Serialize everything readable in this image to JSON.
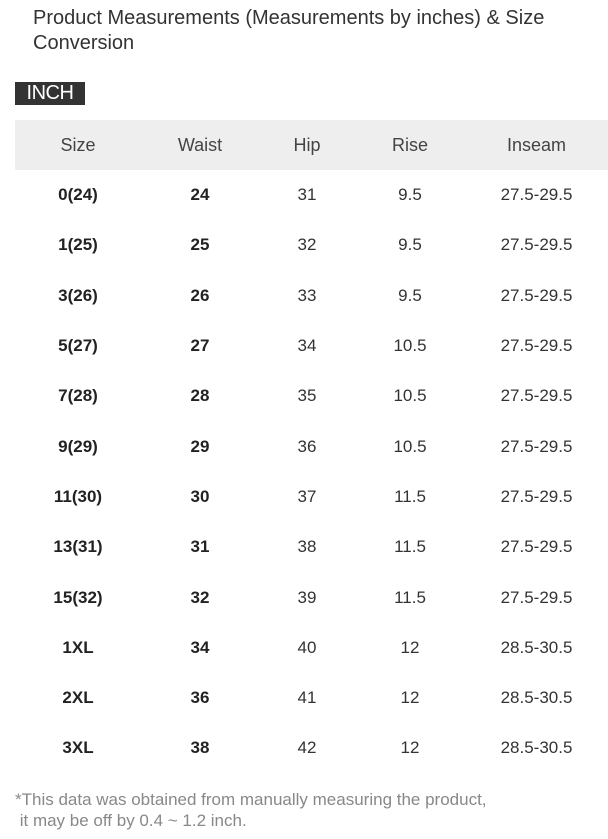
{
  "title": "Product Measurements (Measurements by inches) & Size Conversion",
  "unit_badge": "INCH",
  "table": {
    "headers": [
      "Size",
      "Waist",
      "Hip",
      "Rise",
      "Inseam"
    ],
    "rows": [
      [
        "0(24)",
        "24",
        "31",
        "9.5",
        "27.5-29.5"
      ],
      [
        "1(25)",
        "25",
        "32",
        "9.5",
        "27.5-29.5"
      ],
      [
        "3(26)",
        "26",
        "33",
        "9.5",
        "27.5-29.5"
      ],
      [
        "5(27)",
        "27",
        "34",
        "10.5",
        "27.5-29.5"
      ],
      [
        "7(28)",
        "28",
        "35",
        "10.5",
        "27.5-29.5"
      ],
      [
        "9(29)",
        "29",
        "36",
        "10.5",
        "27.5-29.5"
      ],
      [
        "11(30)",
        "30",
        "37",
        "11.5",
        "27.5-29.5"
      ],
      [
        "13(31)",
        "31",
        "38",
        "11.5",
        "27.5-29.5"
      ],
      [
        "15(32)",
        "32",
        "39",
        "11.5",
        "27.5-29.5"
      ],
      [
        "1XL",
        "34",
        "40",
        "12",
        "28.5-30.5"
      ],
      [
        "2XL",
        "36",
        "41",
        "12",
        "28.5-30.5"
      ],
      [
        "3XL",
        "38",
        "42",
        "12",
        "28.5-30.5"
      ]
    ]
  },
  "note": {
    "line1": "*This data was obtained from manually measuring the product,",
    "line2": " it may be off by 0.4 ~ 1.2 inch."
  }
}
